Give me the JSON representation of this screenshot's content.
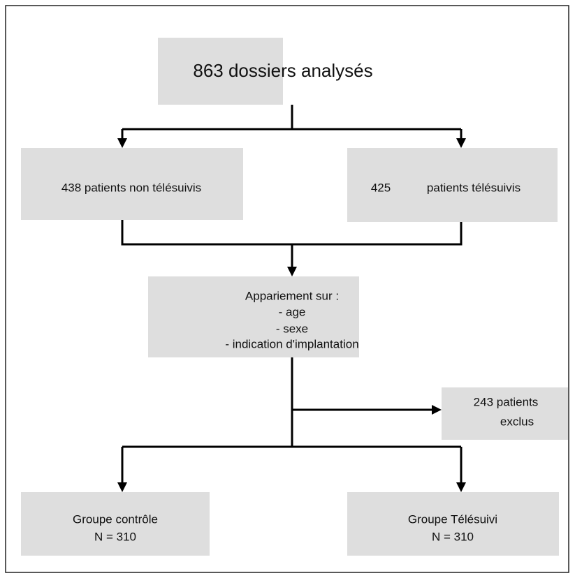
{
  "nodes": [
    {
      "lines": [
        "863 dossiers analysés"
      ]
    },
    {
      "lines": [
        "438 patients non télésuivis"
      ]
    },
    {
      "lines": [
        "425",
        "patients télésuivis"
      ]
    },
    {
      "lines": [
        "Appariement sur :",
        "- age",
        "- sexe",
        "- indication d'implantation"
      ]
    },
    {
      "lines": [
        "243 patients",
        "exclus"
      ]
    },
    {
      "lines": [
        "Groupe contrôle",
        "N = 310"
      ]
    },
    {
      "lines": [
        "Groupe Télésuivi",
        "N = 310"
      ]
    }
  ]
}
